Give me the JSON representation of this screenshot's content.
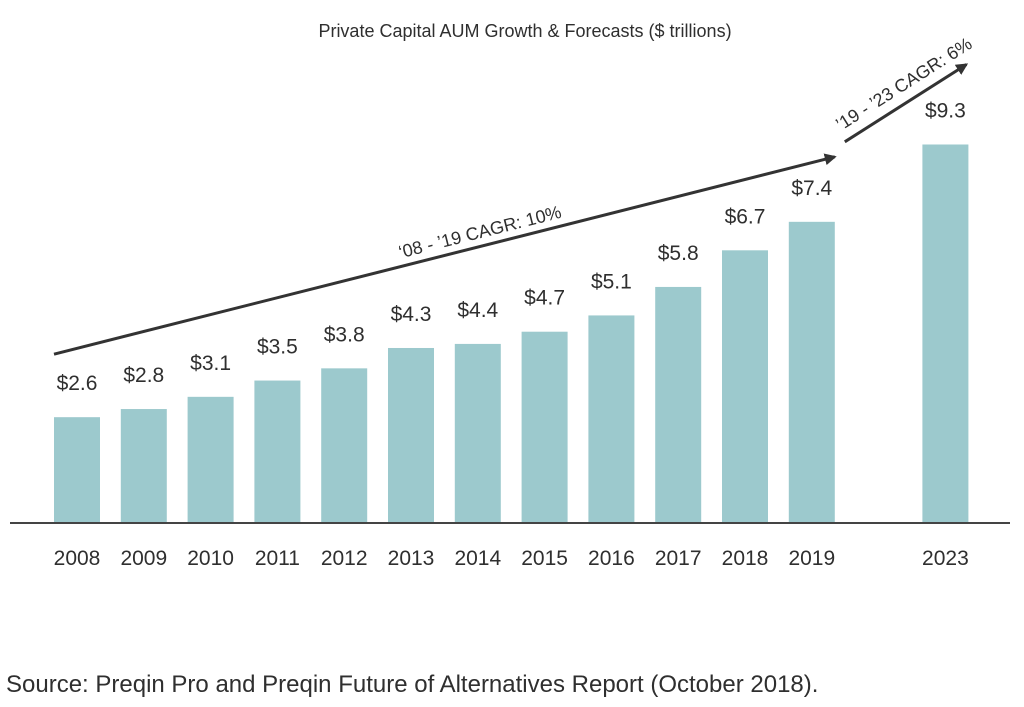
{
  "chart_data": {
    "type": "bar",
    "title": "Private Capital AUM Growth & Forecasts ($ trillions)",
    "categories": [
      "2008",
      "2009",
      "2010",
      "2011",
      "2012",
      "2013",
      "2014",
      "2015",
      "2016",
      "2017",
      "2018",
      "2019",
      "2023"
    ],
    "values": [
      2.6,
      2.8,
      3.1,
      3.5,
      3.8,
      4.3,
      4.4,
      4.7,
      5.1,
      5.8,
      6.7,
      7.4,
      9.3
    ],
    "value_labels": [
      "$2.6",
      "$2.8",
      "$3.1",
      "$3.5",
      "$3.8",
      "$4.3",
      "$4.4",
      "$4.7",
      "$5.1",
      "$5.8",
      "$6.7",
      "$7.4",
      "$9.3"
    ],
    "xlabel": "",
    "ylabel": "",
    "ylim": [
      0,
      10
    ],
    "grid": false,
    "bar_color": "#9cc9cd",
    "annotations": [
      {
        "text": "‘08 - ’19 CAGR: 10%",
        "from": "2008",
        "to": "2019"
      },
      {
        "text": "’19 - ’23 CAGR: 6%",
        "from": "2019",
        "to": "2023"
      }
    ]
  },
  "footer": {
    "source": "Source: Preqin Pro and Preqin Future of Alternatives Report (October 2018)."
  },
  "colors": {
    "text": "#2f2f2f",
    "axis": "#444444",
    "arrow": "#333333"
  }
}
